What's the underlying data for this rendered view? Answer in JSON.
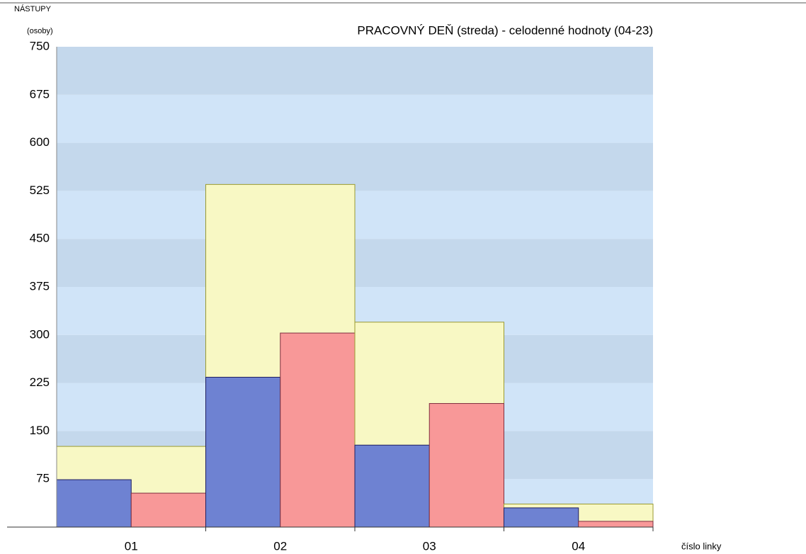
{
  "chart_data": {
    "type": "bar",
    "title": "PRACOVNÝ DEŇ (streda) - celodenné hodnoty (04-23)",
    "y_label": "NÁSTUPY",
    "y_unit": "(osoby)",
    "x_label": "číslo linky",
    "categories": [
      "01",
      "02",
      "03",
      "04"
    ],
    "series": [
      {
        "color": "#f8f8c4",
        "values": [
          126,
          535,
          320,
          36
        ]
      },
      {
        "color": "#6e82d2",
        "values": [
          74,
          234,
          128,
          30
        ]
      },
      {
        "color": "#f89898",
        "values": [
          53,
          303,
          193,
          9
        ]
      }
    ],
    "ylim": [
      0,
      750
    ],
    "yticks": [
      75,
      150,
      225,
      300,
      375,
      450,
      525,
      600,
      675,
      750
    ],
    "band_colors": [
      "#d0e4f8",
      "#c4d8ec"
    ]
  }
}
